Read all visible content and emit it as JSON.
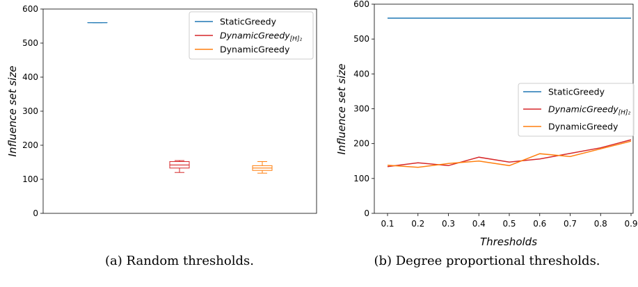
{
  "colors": {
    "static": "#1f77b4",
    "dynamic_h2": "#d62728",
    "dynamic": "#ff7f0e"
  },
  "chart_data": [
    {
      "type": "box",
      "caption": "(a) Random thresholds.",
      "xlabel": "",
      "ylabel": "Influence set size",
      "ylim": [
        0,
        600
      ],
      "yticks": [
        0,
        100,
        200,
        300,
        400,
        500,
        600
      ],
      "grid": false,
      "legend_position": "top-right",
      "series": [
        {
          "name": "StaticGreedy",
          "min": 560,
          "q1": 560,
          "median": 560,
          "q3": 560,
          "max": 560,
          "color": "#1f77b4"
        },
        {
          "name": "DynamicGreedy",
          "name_subscript": "[H]₂",
          "min": 120,
          "q1": 133,
          "median": 142,
          "q3": 152,
          "max": 155,
          "color": "#d62728"
        },
        {
          "name": "DynamicGreedy",
          "min": 118,
          "q1": 126,
          "median": 133,
          "q3": 140,
          "max": 152,
          "color": "#ff7f0e"
        }
      ]
    },
    {
      "type": "line",
      "caption": "(b) Degree proportional thresholds.",
      "xlabel": "Thresholds",
      "ylabel": "Influence set size",
      "ylim": [
        0,
        600
      ],
      "yticks": [
        0,
        100,
        200,
        300,
        400,
        500,
        600
      ],
      "x": [
        0.1,
        0.2,
        0.3,
        0.4,
        0.5,
        0.6,
        0.7,
        0.8,
        0.9
      ],
      "xtick_labels": [
        "0.1",
        "0.2",
        "0.3",
        "0.4",
        "0.5",
        "0.6",
        "0.7",
        "0.8",
        "0.9"
      ],
      "grid": false,
      "legend_position": "right",
      "series": [
        {
          "name": "StaticGreedy",
          "color": "#1f77b4",
          "values": [
            560,
            560,
            560,
            560,
            560,
            560,
            560,
            560,
            560
          ]
        },
        {
          "name": "DynamicGreedy",
          "name_subscript": "[H]₂",
          "color": "#d62728",
          "values": [
            134,
            145,
            137,
            161,
            147,
            156,
            172,
            188,
            211
          ]
        },
        {
          "name": "DynamicGreedy",
          "color": "#ff7f0e",
          "values": [
            138,
            132,
            143,
            150,
            137,
            171,
            163,
            185,
            207
          ]
        }
      ]
    }
  ]
}
